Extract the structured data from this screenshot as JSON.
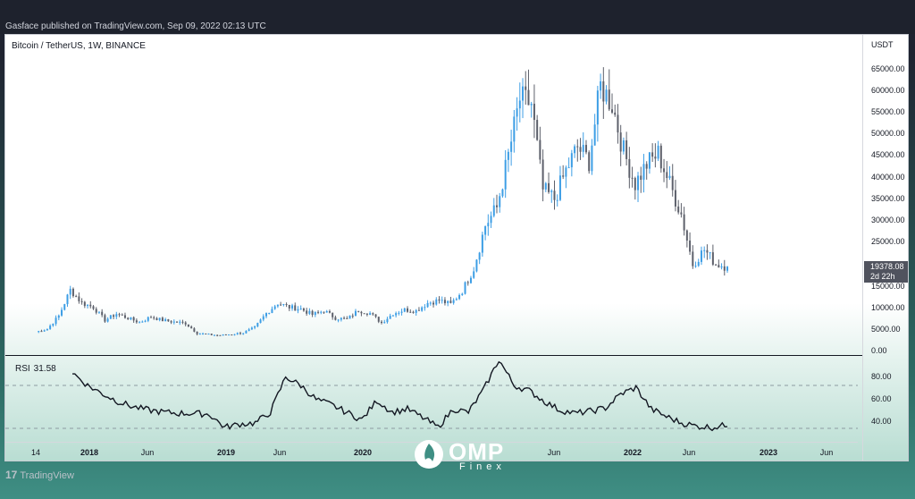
{
  "header": {
    "publisher_line": "Gasface published on TradingView.com, Sep 09, 2022 02:13 UTC"
  },
  "chart": {
    "symbol_line": "Bitcoin / TetherUS, 1W, BINANCE",
    "currency": "USDT",
    "last_price": "19378.08",
    "countdown": "2d 22h",
    "price_ticks": [
      "65000.00",
      "60000.00",
      "55000.00",
      "50000.00",
      "45000.00",
      "40000.00",
      "35000.00",
      "30000.00",
      "25000.00",
      "15000.00",
      "10000.00",
      "5000.00",
      "0.00"
    ],
    "rsi_label": "RSI",
    "rsi_value": "31.58",
    "rsi_ticks": [
      "80.00",
      "60.00",
      "40.00"
    ],
    "time_labels": [
      "14",
      "2018",
      "Jun",
      "2019",
      "Jun",
      "2020",
      "Jun",
      "2022",
      "Jun",
      "2023",
      "Jun"
    ]
  },
  "chart_data": [
    {
      "type": "candlestick",
      "title": "Bitcoin / TetherUS, 1W, BINANCE",
      "ylabel": "USDT",
      "ylim": [
        0,
        70000
      ],
      "x": [
        "2017-09",
        "2017-10",
        "2017-11",
        "2017-12",
        "2018-01",
        "2018-02",
        "2018-03",
        "2018-04",
        "2018-05",
        "2018-06",
        "2018-07",
        "2018-08",
        "2018-09",
        "2018-10",
        "2018-11",
        "2018-12",
        "2019-01",
        "2019-02",
        "2019-03",
        "2019-04",
        "2019-05",
        "2019-06",
        "2019-07",
        "2019-08",
        "2019-09",
        "2019-10",
        "2019-11",
        "2019-12",
        "2020-01",
        "2020-02",
        "2020-03",
        "2020-04",
        "2020-05",
        "2020-06",
        "2020-07",
        "2020-08",
        "2020-09",
        "2020-10",
        "2020-11",
        "2020-12",
        "2021-01",
        "2021-02",
        "2021-03",
        "2021-04",
        "2021-05",
        "2021-06",
        "2021-07",
        "2021-08",
        "2021-09",
        "2021-10",
        "2021-11",
        "2021-12",
        "2022-01",
        "2022-02",
        "2022-03",
        "2022-04",
        "2022-05",
        "2022-06",
        "2022-07",
        "2022-08",
        "2022-09"
      ],
      "close": [
        4300,
        5000,
        8000,
        14000,
        11000,
        10000,
        7000,
        8500,
        7500,
        6500,
        7800,
        7000,
        6600,
        6300,
        4000,
        3700,
        3500,
        3800,
        4100,
        5300,
        8600,
        11000,
        10000,
        9600,
        8300,
        9200,
        7500,
        7200,
        9300,
        8600,
        6400,
        8600,
        9400,
        9200,
        11000,
        11600,
        10700,
        13800,
        19000,
        28900,
        33000,
        45000,
        58000,
        57000,
        37000,
        35000,
        41500,
        47000,
        43800,
        61000,
        57000,
        46000,
        38500,
        43000,
        45500,
        38500,
        31500,
        19900,
        23300,
        20000,
        19378
      ],
      "rsi": {
        "name": "RSI",
        "last": 31.58,
        "ylim": [
          20,
          95
        ],
        "values": [
          82,
          70,
          62,
          55,
          50,
          47,
          45,
          44,
          44,
          43,
          31,
          34,
          35,
          45,
          78,
          70,
          57,
          52,
          45,
          38,
          56,
          45,
          48,
          40,
          31,
          48,
          45,
          66,
          94,
          70,
          65,
          55,
          47,
          44,
          46,
          49,
          62,
          68,
          48,
          41,
          35,
          32,
          31,
          33
        ]
      }
    }
  ]
}
